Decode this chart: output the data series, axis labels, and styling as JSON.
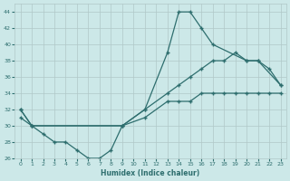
{
  "xlabel": "Humidex (Indice chaleur)",
  "bg_color": "#cce8e8",
  "grid_color": "#b0c8c8",
  "line_color": "#2e6e6e",
  "xlim": [
    -0.5,
    23.5
  ],
  "ylim": [
    26,
    45
  ],
  "x_ticks": [
    0,
    1,
    2,
    3,
    4,
    5,
    6,
    7,
    8,
    9,
    10,
    11,
    12,
    13,
    14,
    15,
    16,
    17,
    18,
    19,
    20,
    21,
    22,
    23
  ],
  "y_ticks": [
    26,
    28,
    30,
    32,
    34,
    36,
    38,
    40,
    42,
    44
  ],
  "line1_x": [
    0,
    1,
    2,
    3,
    4,
    5,
    6,
    7,
    8,
    9,
    11,
    13,
    14,
    15,
    16,
    17,
    20,
    21,
    23
  ],
  "line1_y": [
    32,
    30,
    29,
    28,
    28,
    27,
    26,
    26,
    27,
    30,
    32,
    39,
    44,
    44,
    42,
    40,
    38,
    38,
    35
  ],
  "line2_x": [
    0,
    1,
    9,
    11,
    13,
    14,
    15,
    16,
    17,
    18,
    19,
    20,
    21,
    22,
    23
  ],
  "line2_y": [
    32,
    30,
    30,
    32,
    34,
    35,
    36,
    37,
    38,
    38,
    39,
    38,
    38,
    37,
    35
  ],
  "line3_x": [
    0,
    1,
    9,
    11,
    13,
    14,
    15,
    16,
    17,
    18,
    19,
    20,
    21,
    22,
    23
  ],
  "line3_y": [
    31,
    30,
    30,
    31,
    33,
    33,
    33,
    34,
    34,
    34,
    34,
    34,
    34,
    34,
    34
  ]
}
